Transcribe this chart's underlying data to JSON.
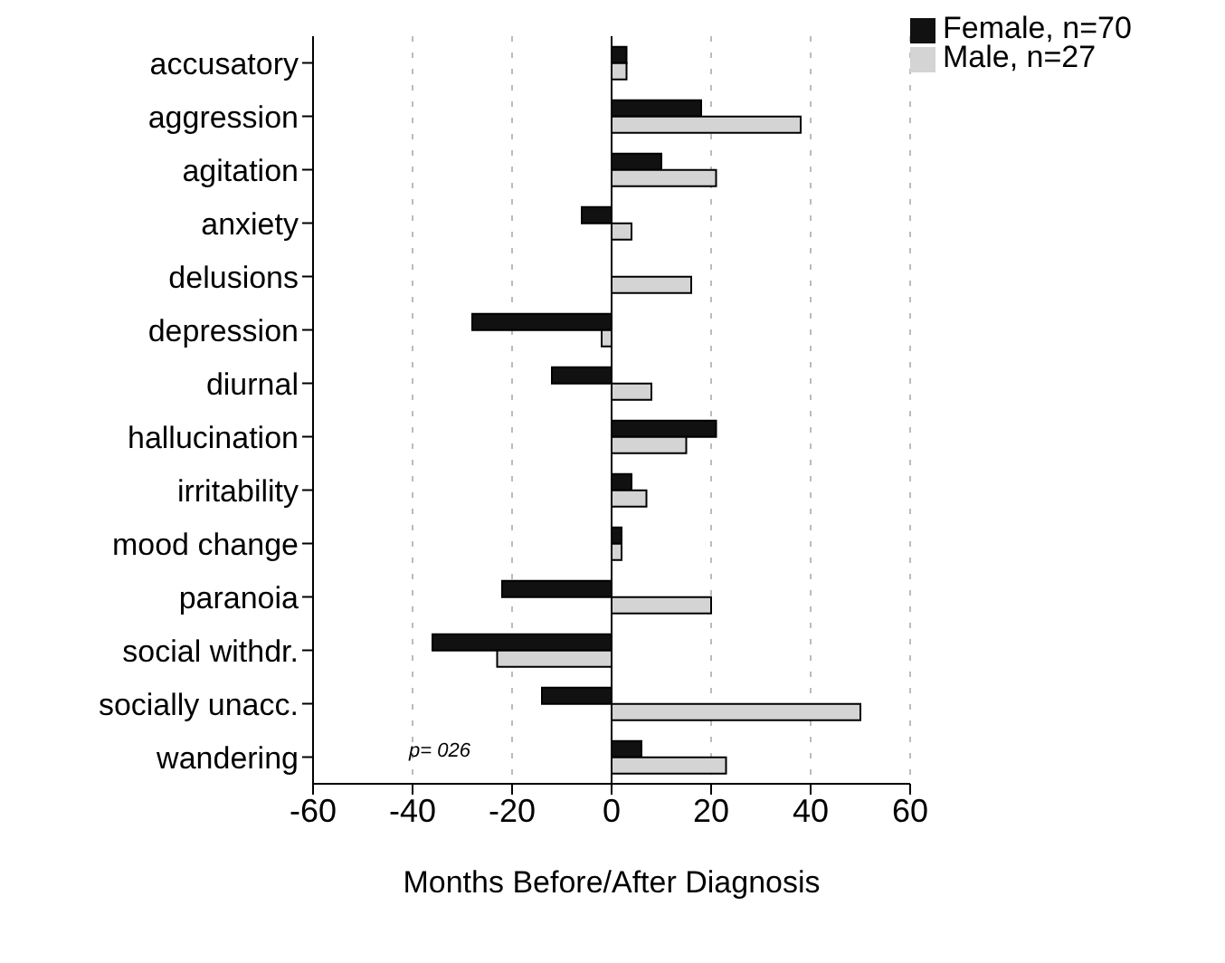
{
  "chart_data": {
    "type": "bar",
    "orientation": "horizontal",
    "xlabel": "Months Before/After Diagnosis",
    "categories": [
      "accusatory",
      "aggression",
      "agitation",
      "anxiety",
      "delusions",
      "depression",
      "diurnal",
      "hallucination",
      "irritability",
      "mood change",
      "paranoia",
      "social withdr.",
      "socially unacc.",
      "wandering"
    ],
    "series": [
      {
        "name": "Female, n=70",
        "color": "#111111",
        "values": [
          3,
          18,
          10,
          -6,
          null,
          -28,
          -12,
          21,
          4,
          2,
          -22,
          -36,
          -14,
          6
        ]
      },
      {
        "name": "Male, n=27",
        "color": "#d4d4d4",
        "values": [
          3,
          38,
          21,
          4,
          16,
          -2,
          8,
          15,
          7,
          2,
          20,
          -23,
          50,
          23
        ]
      }
    ],
    "xlim": [
      -60,
      60
    ],
    "xticks": [
      -60,
      -40,
      -20,
      0,
      20,
      40,
      60
    ],
    "grid": "x",
    "legend": "top right",
    "annotations": [
      "p= 026"
    ]
  }
}
